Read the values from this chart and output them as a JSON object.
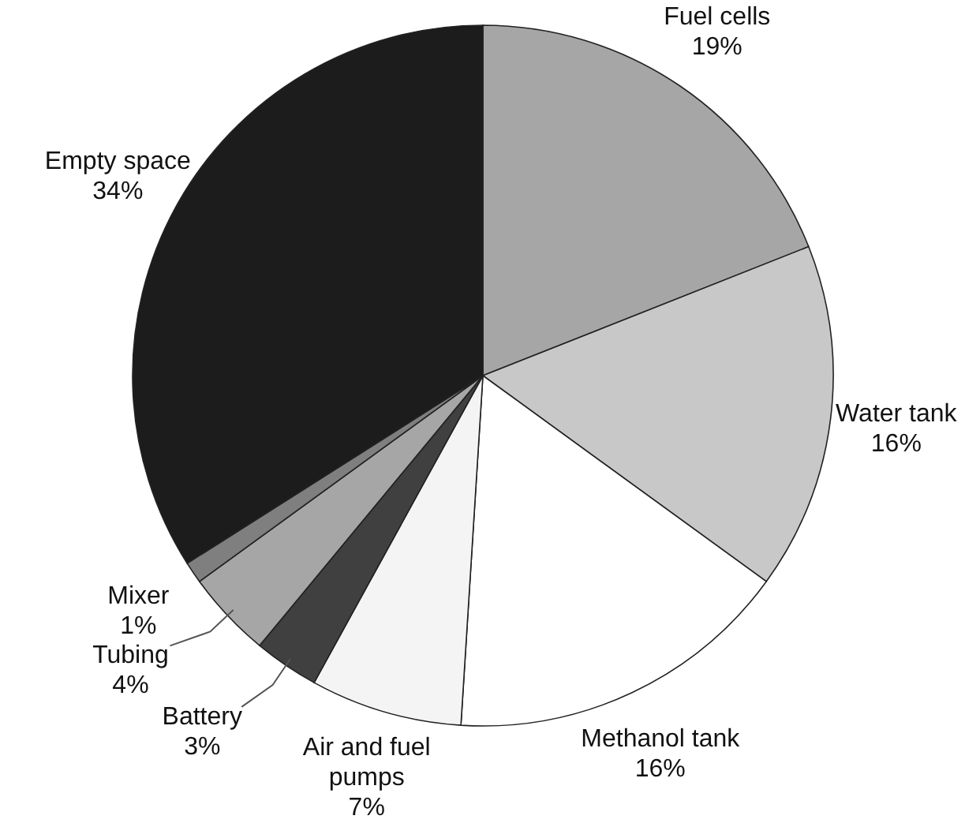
{
  "chart_data": {
    "type": "pie",
    "categories": [
      "Fuel cells",
      "Water tank",
      "Methanol tank",
      "Air and fuel pumps",
      "Battery",
      "Tubing",
      "Mixer",
      "Empty space"
    ],
    "values": [
      19,
      16,
      16,
      7,
      3,
      4,
      1,
      34
    ],
    "value_labels": [
      "19%",
      "16%",
      "16%",
      "7%",
      "3%",
      "4%",
      "1%",
      "34%"
    ],
    "colors": [
      "#a6a6a6",
      "#c8c8c8",
      "#ffffff",
      "#f4f4f4",
      "#404040",
      "#a6a6a6",
      "#7f7f7f",
      "#1c1c1c"
    ]
  }
}
